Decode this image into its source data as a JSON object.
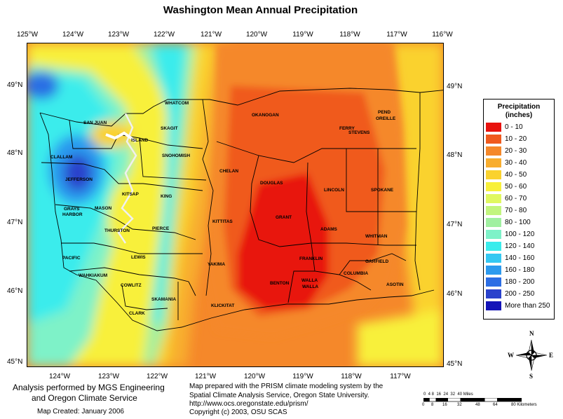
{
  "title": "Washington Mean Annual Precipitation",
  "lon_ticks_top": [
    "125°W",
    "124°W",
    "123°W",
    "122°W",
    "121°W",
    "120°W",
    "119°W",
    "118°W",
    "117°W",
    "116°W"
  ],
  "lon_ticks_bottom": [
    "124°W",
    "123°W",
    "122°W",
    "121°W",
    "120°W",
    "119°W",
    "118°W",
    "117°W"
  ],
  "lat_ticks_left": [
    "49°N",
    "48°N",
    "47°N",
    "46°N",
    "45°N"
  ],
  "lat_ticks_right": [
    "49°N",
    "48°N",
    "47°N",
    "46°N",
    "45°N"
  ],
  "legend": {
    "title_line1": "Precipitation",
    "title_line2": "(inches)",
    "items": [
      {
        "label": "0 - 10",
        "color": "#e8120e"
      },
      {
        "label": "10 - 20",
        "color": "#f05a1e"
      },
      {
        "label": "20 - 30",
        "color": "#f5882a"
      },
      {
        "label": "30 - 40",
        "color": "#f8ad2e"
      },
      {
        "label": "40 - 50",
        "color": "#fad22e"
      },
      {
        "label": "50 - 60",
        "color": "#f8f03a"
      },
      {
        "label": "60 - 70",
        "color": "#e0f860"
      },
      {
        "label": "70 - 80",
        "color": "#c2f57e"
      },
      {
        "label": "80 - 100",
        "color": "#a0f0a0"
      },
      {
        "label": "100 - 120",
        "color": "#7ef2c8"
      },
      {
        "label": "120 - 140",
        "color": "#3aecec"
      },
      {
        "label": "140 - 160",
        "color": "#34c8f2"
      },
      {
        "label": "160 - 180",
        "color": "#2c9aee"
      },
      {
        "label": "180 - 200",
        "color": "#2c6ee4"
      },
      {
        "label": "200 - 250",
        "color": "#2a42cc"
      },
      {
        "label": "More than 250",
        "color": "#1414b8"
      }
    ]
  },
  "counties": [
    "WHATCOM",
    "SAN JUAN",
    "SKAGIT",
    "ISLAND",
    "CLALLAM",
    "SNOHOMISH",
    "JEFFERSON",
    "KITSAP",
    "KING",
    "GRAYS",
    "HARBOR",
    "MASON",
    "THURSTON",
    "PIERCE",
    "PACIFIC",
    "LEWIS",
    "WAHKIAKUM",
    "COWLITZ",
    "SKAMANIA",
    "CLARK",
    "OKANOGAN",
    "FERRY",
    "STEVENS",
    "PEND",
    "OREILLE",
    "CHELAN",
    "DOUGLAS",
    "LINCOLN",
    "SPOKANE",
    "KITTITAS",
    "GRANT",
    "ADAMS",
    "WHITMAN",
    "YAKIMA",
    "FRANKLIN",
    "GARFIELD",
    "COLUMBIA",
    "WALLA",
    "WALLA",
    "ASOTIN",
    "BENTON",
    "KLICKITAT"
  ],
  "credits": {
    "analysis_line1": "Analysis performed by MGS Engineering",
    "analysis_line2": "and Oregon Climate Service",
    "created": "Map Created: January 2006",
    "prism_line1": "Map prepared with the PRISM climate modeling system by the",
    "prism_line2": "Spatial Climate Analysis Service, Oregon State University.",
    "prism_line3": "http://www.ocs.oregonstate.edu/prism/",
    "prism_line4": "Copyright (c) 2003, OSU SCAS"
  },
  "scale": {
    "miles_ticks": "0  4 8  16  24  32  40 Miles",
    "km_ticks": [
      "0",
      "8",
      "16",
      "32",
      "48",
      "64",
      "80 Kilometers"
    ]
  },
  "compass": {
    "n": "N",
    "s": "S",
    "e": "E",
    "w": "W"
  }
}
